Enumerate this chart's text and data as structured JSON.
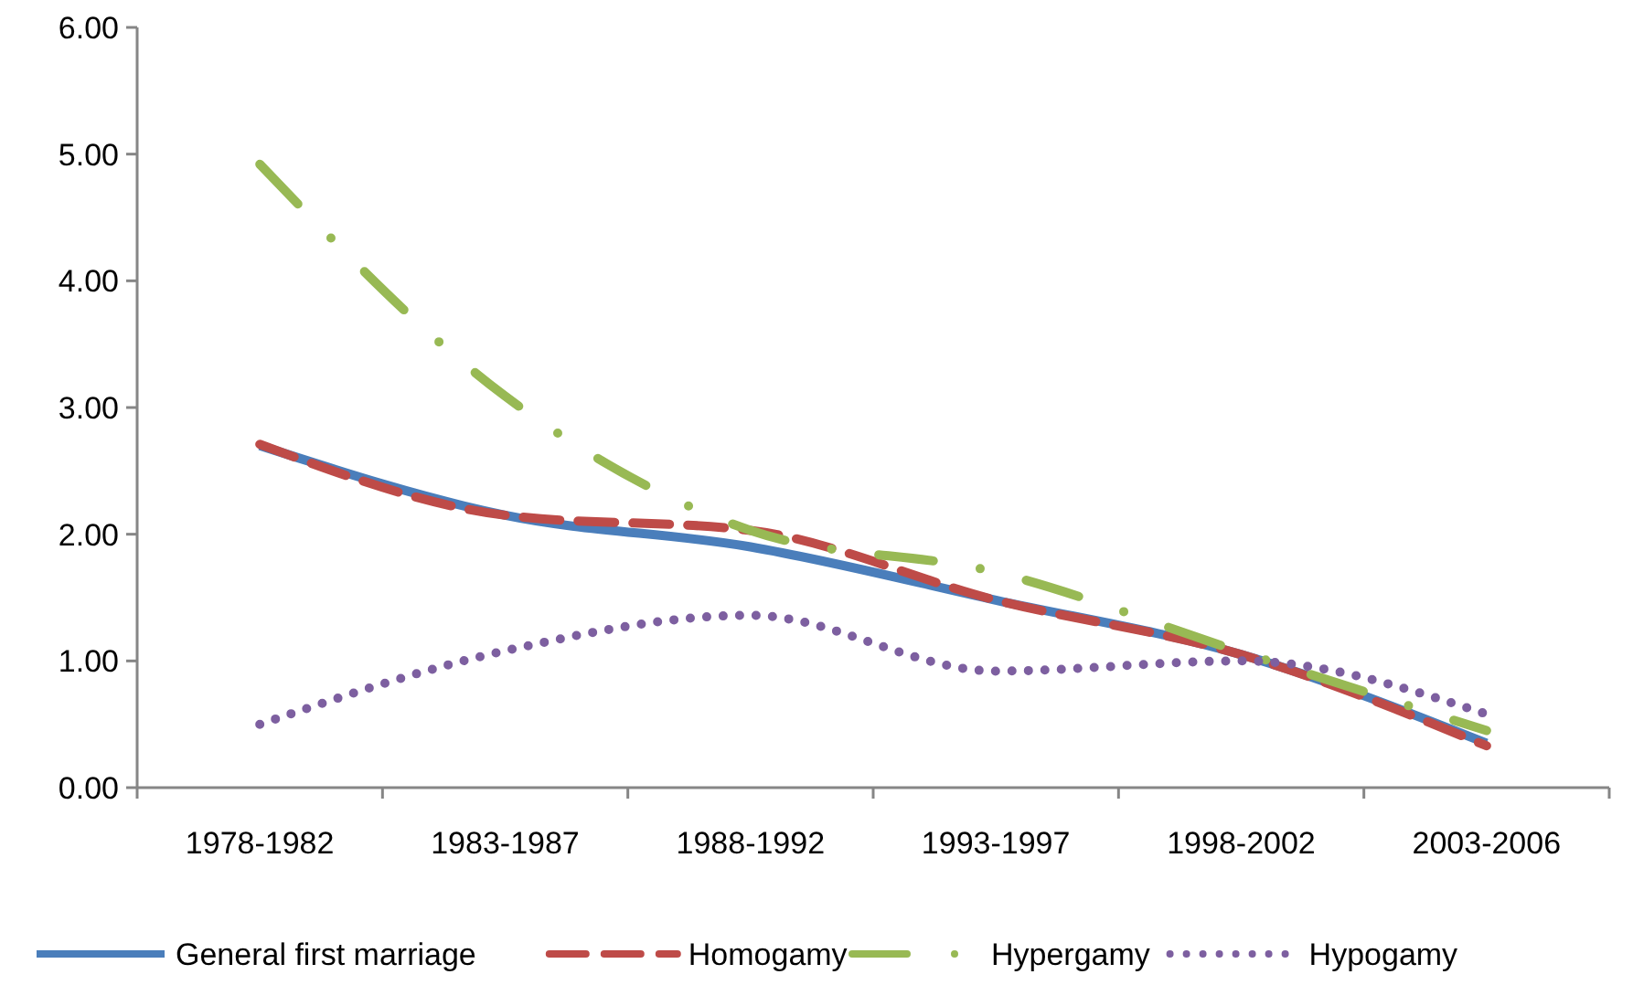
{
  "chart_data": {
    "type": "line",
    "categories": [
      "1978-1982",
      "1983-1987",
      "1988-1992",
      "1993-1997",
      "1998-2002",
      "2003-2006"
    ],
    "ylim": [
      0,
      6
    ],
    "yticks": [
      {
        "value": 0,
        "label": "0.00"
      },
      {
        "value": 1,
        "label": "1.00"
      },
      {
        "value": 2,
        "label": "2.00"
      },
      {
        "value": 3,
        "label": "3.00"
      },
      {
        "value": 4,
        "label": "4.00"
      },
      {
        "value": 5,
        "label": "5.00"
      },
      {
        "value": 6,
        "label": "6.00"
      }
    ],
    "legend": "bottom",
    "grid": false,
    "series": [
      {
        "name": "General first marriage",
        "color": "#4a7ebb",
        "line_style": "solid",
        "values": [
          2.7,
          2.15,
          1.9,
          1.48,
          1.05,
          0.35
        ]
      },
      {
        "name": "Homogamy",
        "color": "#be4b48",
        "line_style": "dashed",
        "values": [
          2.71,
          2.15,
          2.03,
          1.48,
          1.05,
          0.33
        ]
      },
      {
        "name": "Hypergamy",
        "color": "#98b954",
        "line_style": "dashdot",
        "values": [
          4.92,
          3.09,
          2.03,
          1.7,
          1.07,
          0.45
        ]
      },
      {
        "name": "Hypogamy",
        "color": "#7d5fa0",
        "line_style": "dotted",
        "values": [
          0.5,
          1.08,
          1.36,
          0.92,
          1.0,
          0.58
        ]
      }
    ]
  }
}
